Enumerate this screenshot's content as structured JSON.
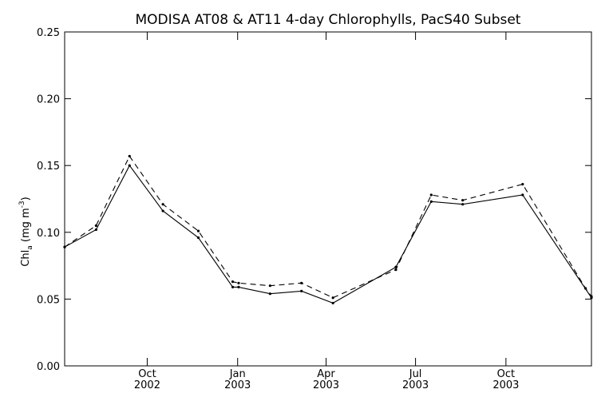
{
  "chart_data": {
    "type": "line",
    "title": "MODISA AT08 & AT11 4-day Chlorophylls, PacS40 Subset",
    "xlabel": "",
    "ylabel_parts": {
      "main": "Chl",
      "subscript": "a",
      "unit_open": " (mg m",
      "unit_exp": "-3",
      "unit_close": ")"
    },
    "ylim": [
      0.0,
      0.25
    ],
    "xlim": [
      "2002-07-09",
      "2003-12-27"
    ],
    "y_ticks": [
      {
        "value": 0.0,
        "label": "0.00"
      },
      {
        "value": 0.05,
        "label": "0.05"
      },
      {
        "value": 0.1,
        "label": "0.10"
      },
      {
        "value": 0.15,
        "label": "0.15"
      },
      {
        "value": 0.2,
        "label": "0.20"
      },
      {
        "value": 0.25,
        "label": "0.25"
      }
    ],
    "x_ticks": [
      {
        "date": "2002-10-01",
        "month": "Oct",
        "year": "2002"
      },
      {
        "date": "2003-01-01",
        "month": "Jan",
        "year": "2003"
      },
      {
        "date": "2003-04-01",
        "month": "Apr",
        "year": "2003"
      },
      {
        "date": "2003-07-01",
        "month": "Jul",
        "year": "2003"
      },
      {
        "date": "2003-10-01",
        "month": "Oct",
        "year": "2003"
      }
    ],
    "grid": false,
    "series": [
      {
        "style": "solid",
        "color": "#000000",
        "points": [
          {
            "x": "2002-07-09",
            "y": 0.089
          },
          {
            "x": "2002-08-10",
            "y": 0.102
          },
          {
            "x": "2002-09-13",
            "y": 0.15
          },
          {
            "x": "2002-10-17",
            "y": 0.116
          },
          {
            "x": "2002-11-22",
            "y": 0.096
          },
          {
            "x": "2002-12-27",
            "y": 0.059
          },
          {
            "x": "2003-01-02",
            "y": 0.059
          },
          {
            "x": "2003-02-03",
            "y": 0.054
          },
          {
            "x": "2003-03-07",
            "y": 0.056
          },
          {
            "x": "2003-04-08",
            "y": 0.047
          },
          {
            "x": "2003-06-11",
            "y": 0.074
          },
          {
            "x": "2003-07-17",
            "y": 0.123
          },
          {
            "x": "2003-08-18",
            "y": 0.121
          },
          {
            "x": "2003-10-18",
            "y": 0.128
          },
          {
            "x": "2003-12-27",
            "y": 0.051
          }
        ]
      },
      {
        "style": "dashed",
        "color": "#000000",
        "points": [
          {
            "x": "2002-07-09",
            "y": 0.089
          },
          {
            "x": "2002-08-10",
            "y": 0.105
          },
          {
            "x": "2002-09-13",
            "y": 0.157
          },
          {
            "x": "2002-10-17",
            "y": 0.121
          },
          {
            "x": "2002-11-22",
            "y": 0.101
          },
          {
            "x": "2002-12-27",
            "y": 0.063
          },
          {
            "x": "2003-01-02",
            "y": 0.062
          },
          {
            "x": "2003-02-03",
            "y": 0.06
          },
          {
            "x": "2003-03-07",
            "y": 0.062
          },
          {
            "x": "2003-04-08",
            "y": 0.051
          },
          {
            "x": "2003-06-11",
            "y": 0.072
          },
          {
            "x": "2003-07-17",
            "y": 0.128
          },
          {
            "x": "2003-08-18",
            "y": 0.124
          },
          {
            "x": "2003-10-18",
            "y": 0.136
          },
          {
            "x": "2003-12-21",
            "y": 0.058
          },
          {
            "x": "2003-12-27",
            "y": 0.052
          }
        ]
      }
    ]
  }
}
